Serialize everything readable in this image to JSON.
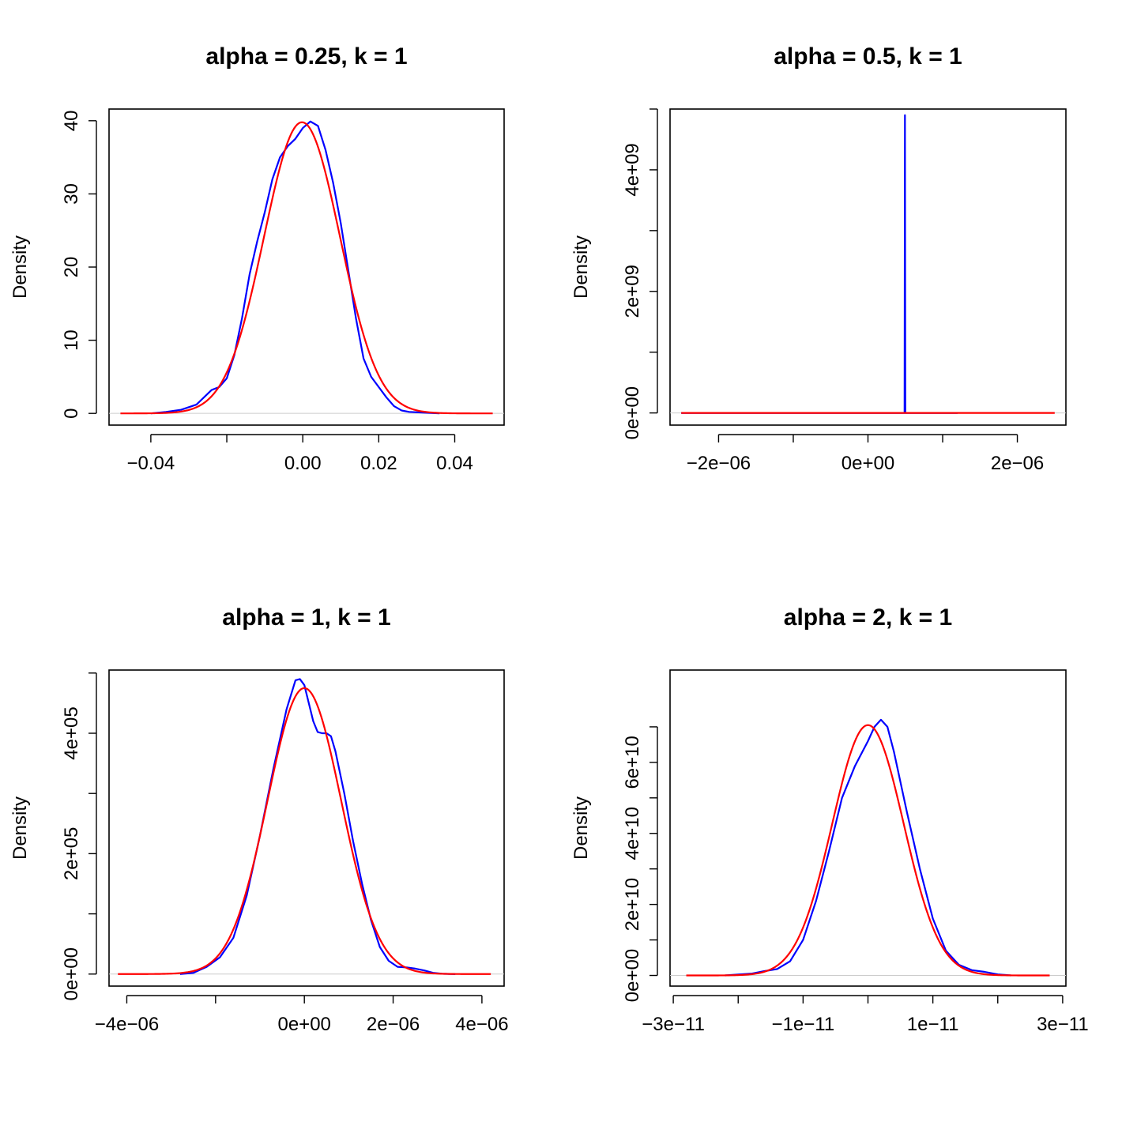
{
  "colors": {
    "blue": "#0000ff",
    "red": "#ff0000",
    "baseline": "#cccccc"
  },
  "chart_data": [
    {
      "type": "line",
      "title": "alpha = 0.25, k = 1",
      "ylabel": "Density",
      "xlabel": "",
      "xlim": [
        -0.051,
        0.053
      ],
      "ylim": [
        -1.6,
        41.6
      ],
      "x_ticks": [
        -0.04,
        -0.02,
        0.0,
        0.02,
        0.04
      ],
      "x_tick_labels": [
        "−0.04",
        "",
        "0.00",
        "0.02",
        "0.04"
      ],
      "y_ticks": [
        0,
        10,
        20,
        30,
        40
      ],
      "y_tick_labels": [
        "0",
        "10",
        "20",
        "30",
        "40"
      ],
      "series": [
        {
          "color": "blue",
          "points": [
            [
              -0.04,
              0
            ],
            [
              -0.036,
              0.2
            ],
            [
              -0.032,
              0.5
            ],
            [
              -0.028,
              1.2
            ],
            [
              -0.026,
              2.2
            ],
            [
              -0.024,
              3.2
            ],
            [
              -0.022,
              3.6
            ],
            [
              -0.02,
              4.8
            ],
            [
              -0.018,
              8
            ],
            [
              -0.016,
              13
            ],
            [
              -0.014,
              19
            ],
            [
              -0.012,
              23.5
            ],
            [
              -0.01,
              27.5
            ],
            [
              -0.008,
              32
            ],
            [
              -0.006,
              35
            ],
            [
              -0.004,
              36.5
            ],
            [
              -0.002,
              37.5
            ],
            [
              0,
              39
            ],
            [
              0.002,
              39.9
            ],
            [
              0.004,
              39.3
            ],
            [
              0.006,
              36
            ],
            [
              0.008,
              31.5
            ],
            [
              0.01,
              26
            ],
            [
              0.012,
              19.5
            ],
            [
              0.014,
              13
            ],
            [
              0.016,
              7.5
            ],
            [
              0.018,
              5
            ],
            [
              0.02,
              3.6
            ],
            [
              0.022,
              2.2
            ],
            [
              0.024,
              1
            ],
            [
              0.026,
              0.4
            ],
            [
              0.028,
              0.2
            ],
            [
              0.032,
              0.1
            ],
            [
              0.036,
              0
            ]
          ]
        },
        {
          "color": "red",
          "gaussian": {
            "mu": -0.0002,
            "sigma": 0.01,
            "amp": 39.8
          },
          "domain": [
            -0.048,
            0.05
          ]
        }
      ]
    },
    {
      "type": "line",
      "title": "alpha = 0.5, k = 1",
      "ylabel": "Density",
      "xlabel": "",
      "xlim": [
        -2.65e-06,
        2.65e-06
      ],
      "ylim": [
        -200000000.0,
        5000000000.0
      ],
      "x_ticks": [
        -2e-06,
        -1e-06,
        0,
        1e-06,
        2e-06
      ],
      "x_tick_labels": [
        "−2e−06",
        "",
        "0e+00",
        "",
        "2e−06"
      ],
      "y_ticks": [
        0,
        1000000000.0,
        2000000000.0,
        3000000000.0,
        4000000000.0,
        5000000000.0
      ],
      "y_tick_labels": [
        "0e+00",
        "",
        "2e+09",
        "",
        "4e+09",
        ""
      ],
      "series": [
        {
          "color": "blue",
          "points": [
            [
              -2.5e-06,
              0
            ],
            [
              4.9e-07,
              0
            ],
            [
              4.95e-07,
              4900000000.0
            ],
            [
              5e-07,
              0
            ],
            [
              1.2e-06,
              0
            ]
          ]
        },
        {
          "color": "red",
          "points": [
            [
              -2.5e-06,
              0
            ],
            [
              2.5e-06,
              0
            ]
          ]
        }
      ]
    },
    {
      "type": "line",
      "title": "alpha = 1, k = 1",
      "ylabel": "Density",
      "xlabel": "",
      "xlim": [
        -4.4e-06,
        4.5e-06
      ],
      "ylim": [
        -20000.0,
        505000.0
      ],
      "x_ticks": [
        -4e-06,
        -2e-06,
        0,
        2e-06,
        4e-06
      ],
      "x_tick_labels": [
        "−4e−06",
        "",
        "0e+00",
        "2e−06",
        "4e−06"
      ],
      "y_ticks": [
        0,
        100000.0,
        200000.0,
        300000.0,
        400000.0,
        500000.0
      ],
      "y_tick_labels": [
        "0e+00",
        "",
        "2e+05",
        "",
        "4e+05",
        ""
      ],
      "series": [
        {
          "color": "blue",
          "points": [
            [
              -2.8e-06,
              0
            ],
            [
              -2.5e-06,
              2000.0
            ],
            [
              -2.2e-06,
              12000.0
            ],
            [
              -1.9e-06,
              28000.0
            ],
            [
              -1.6e-06,
              60000.0
            ],
            [
              -1.3e-06,
              130000.0
            ],
            [
              -1e-06,
              230000.0
            ],
            [
              -7e-07,
              340000.0
            ],
            [
              -4e-07,
              440000.0
            ],
            [
              -2e-07,
              488000.0
            ],
            [
              -1e-07,
              490000.0
            ],
            [
              0,
              480000.0
            ],
            [
              1e-07,
              450000.0
            ],
            [
              2e-07,
              420000.0
            ],
            [
              3e-07,
              402000.0
            ],
            [
              4e-07,
              400000.0
            ],
            [
              5e-07,
              400000.0
            ],
            [
              6e-07,
              395000.0
            ],
            [
              7e-07,
              370000.0
            ],
            [
              9e-07,
              300000.0
            ],
            [
              1.1e-06,
              220000.0
            ],
            [
              1.3e-06,
              150000.0
            ],
            [
              1.5e-06,
              90000.0
            ],
            [
              1.7e-06,
              45000.0
            ],
            [
              1.9e-06,
              22000.0
            ],
            [
              2.1e-06,
              12000.0
            ],
            [
              2.3e-06,
              11000.0
            ],
            [
              2.5e-06,
              9000.0
            ],
            [
              2.7e-06,
              6000.0
            ],
            [
              2.9e-06,
              2000.0
            ],
            [
              3.1e-06,
              500.0
            ],
            [
              3.4e-06,
              0
            ]
          ]
        },
        {
          "color": "red",
          "gaussian": {
            "mu": 0,
            "sigma": 8.3e-07,
            "amp": 475000.0
          },
          "domain": [
            -4.2e-06,
            4.2e-06
          ]
        }
      ]
    },
    {
      "type": "line",
      "title": "alpha = 2, k = 1",
      "ylabel": "Density",
      "xlabel": "",
      "xlim": [
        -3.05e-11,
        3.05e-11
      ],
      "ylim": [
        -3000000000.0,
        86000000000.0
      ],
      "x_ticks": [
        -3e-11,
        -2e-11,
        -1e-11,
        0,
        1e-11,
        2e-11,
        3e-11
      ],
      "x_tick_labels": [
        "−3e−11",
        "",
        "−1e−11",
        "",
        "1e−11",
        "",
        "3e−11"
      ],
      "y_ticks": [
        0,
        10000000000.0,
        20000000000.0,
        30000000000.0,
        40000000000.0,
        50000000000.0,
        60000000000.0,
        70000000000.0
      ],
      "y_tick_labels": [
        "0e+00",
        "",
        "2e+10",
        "",
        "4e+10",
        "",
        "6e+10",
        ""
      ],
      "series": [
        {
          "color": "blue",
          "points": [
            [
              -2.2e-11,
              0
            ],
            [
              -1.8e-11,
              500000000.0
            ],
            [
              -1.6e-11,
              1200000000.0
            ],
            [
              -1.4e-11,
              1800000000.0
            ],
            [
              -1.2e-11,
              4000000000.0
            ],
            [
              -1e-11,
              10000000000.0
            ],
            [
              -8e-12,
              21000000000.0
            ],
            [
              -6e-12,
              35000000000.0
            ],
            [
              -4e-12,
              50000000000.0
            ],
            [
              -2e-12,
              59000000000.0
            ],
            [
              0,
              66000000000.0
            ],
            [
              1e-12,
              70000000000.0
            ],
            [
              2e-12,
              72000000000.0
            ],
            [
              3e-12,
              70000000000.0
            ],
            [
              4e-12,
              63000000000.0
            ],
            [
              6e-12,
              46000000000.0
            ],
            [
              8e-12,
              30000000000.0
            ],
            [
              1e-11,
              16000000000.0
            ],
            [
              1.2e-11,
              7000000000.0
            ],
            [
              1.4e-11,
              3000000000.0
            ],
            [
              1.6e-11,
              1500000000.0
            ],
            [
              1.8e-11,
              1000000000.0
            ],
            [
              2e-11,
              300000000.0
            ],
            [
              2.2e-11,
              0
            ]
          ]
        },
        {
          "color": "red",
          "gaussian": {
            "mu": 0,
            "sigma": 5.5e-12,
            "amp": 70500000000.0
          },
          "domain": [
            -2.8e-11,
            2.8e-11
          ]
        }
      ]
    }
  ]
}
